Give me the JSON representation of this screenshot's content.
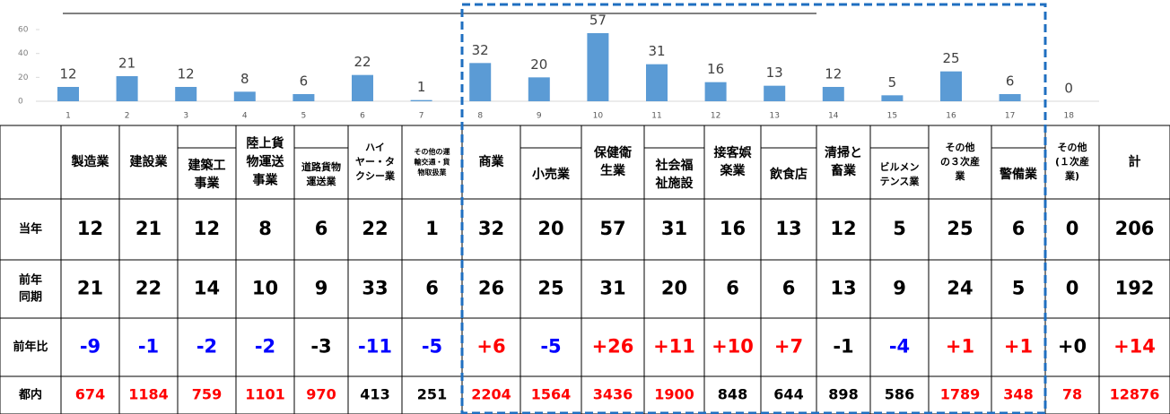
{
  "chart_data": {
    "type": "bar",
    "categories": [
      "1",
      "2",
      "3",
      "4",
      "5",
      "6",
      "7",
      "8",
      "9",
      "10",
      "11",
      "12",
      "13",
      "14",
      "15",
      "16",
      "17",
      "18"
    ],
    "values": [
      12,
      21,
      12,
      8,
      6,
      22,
      1,
      32,
      20,
      57,
      31,
      16,
      13,
      12,
      5,
      25,
      6,
      0
    ],
    "color": "#5b9bd5",
    "ylim": [
      0,
      60
    ],
    "yticks": [
      0,
      20,
      40,
      60
    ],
    "grid": false
  },
  "table": {
    "headers": [
      [
        "製造業"
      ],
      [
        "建設業"
      ],
      [
        "建築工",
        "事業"
      ],
      [
        "陸上貨",
        "物運送",
        "事業"
      ],
      [
        "道路貨物",
        "運送業"
      ],
      [
        "ハイ",
        "ヤー・タ",
        "クシー業"
      ],
      [
        "その他の運",
        "輸交通・貨",
        "物取扱業"
      ],
      [
        "商業"
      ],
      [
        "小売業"
      ],
      [
        "保健衛",
        "生業"
      ],
      [
        "社会福",
        "祉施設"
      ],
      [
        "接客娯",
        "楽業"
      ],
      [
        "飲食店"
      ],
      [
        "清掃と",
        "畜業"
      ],
      [
        "ビルメン",
        "テンス業"
      ],
      [
        "その他",
        "の３次産",
        "業"
      ],
      [
        "警備業"
      ],
      [
        "その他",
        "(１次産",
        "業)"
      ],
      [
        "計"
      ]
    ],
    "rows": [
      {
        "label": [
          "当年"
        ],
        "cells": [
          12,
          21,
          12,
          8,
          6,
          22,
          1,
          32,
          20,
          57,
          31,
          16,
          13,
          12,
          5,
          25,
          6,
          0,
          206
        ]
      },
      {
        "label": [
          "前年",
          "同期"
        ],
        "cells": [
          21,
          22,
          14,
          10,
          9,
          33,
          6,
          26,
          25,
          31,
          20,
          6,
          6,
          13,
          9,
          24,
          5,
          0,
          192
        ]
      },
      {
        "label": [
          "前年比"
        ],
        "cells": [
          "-9",
          "-1",
          "-2",
          "-2",
          "-3",
          "-11",
          "-5",
          "+6",
          "-5",
          "+26",
          "+11",
          "+10",
          "+7",
          "-1",
          "-4",
          "+1",
          "+1",
          "+0",
          "+14"
        ],
        "colors": [
          "#0000ff",
          "#0000ff",
          "#0000ff",
          "#0000ff",
          "#000000",
          "#0000ff",
          "#0000ff",
          "#ff0000",
          "#0000ff",
          "#ff0000",
          "#ff0000",
          "#ff0000",
          "#ff0000",
          "#000000",
          "#0000ff",
          "#ff0000",
          "#ff0000",
          "#000000",
          "#ff0000"
        ]
      },
      {
        "label": [
          "都内"
        ],
        "cells": [
          674,
          1184,
          759,
          1101,
          970,
          413,
          251,
          2204,
          1564,
          3436,
          1900,
          848,
          644,
          898,
          586,
          1789,
          348,
          78,
          12876
        ],
        "colors": [
          "#ff0000",
          "#ff0000",
          "#ff0000",
          "#ff0000",
          "#ff0000",
          "#000000",
          "#000000",
          "#ff0000",
          "#ff0000",
          "#ff0000",
          "#ff0000",
          "#000000",
          "#000000",
          "#000000",
          "#000000",
          "#ff0000",
          "#ff0000",
          "#ff0000",
          "#ff0000"
        ]
      }
    ]
  }
}
